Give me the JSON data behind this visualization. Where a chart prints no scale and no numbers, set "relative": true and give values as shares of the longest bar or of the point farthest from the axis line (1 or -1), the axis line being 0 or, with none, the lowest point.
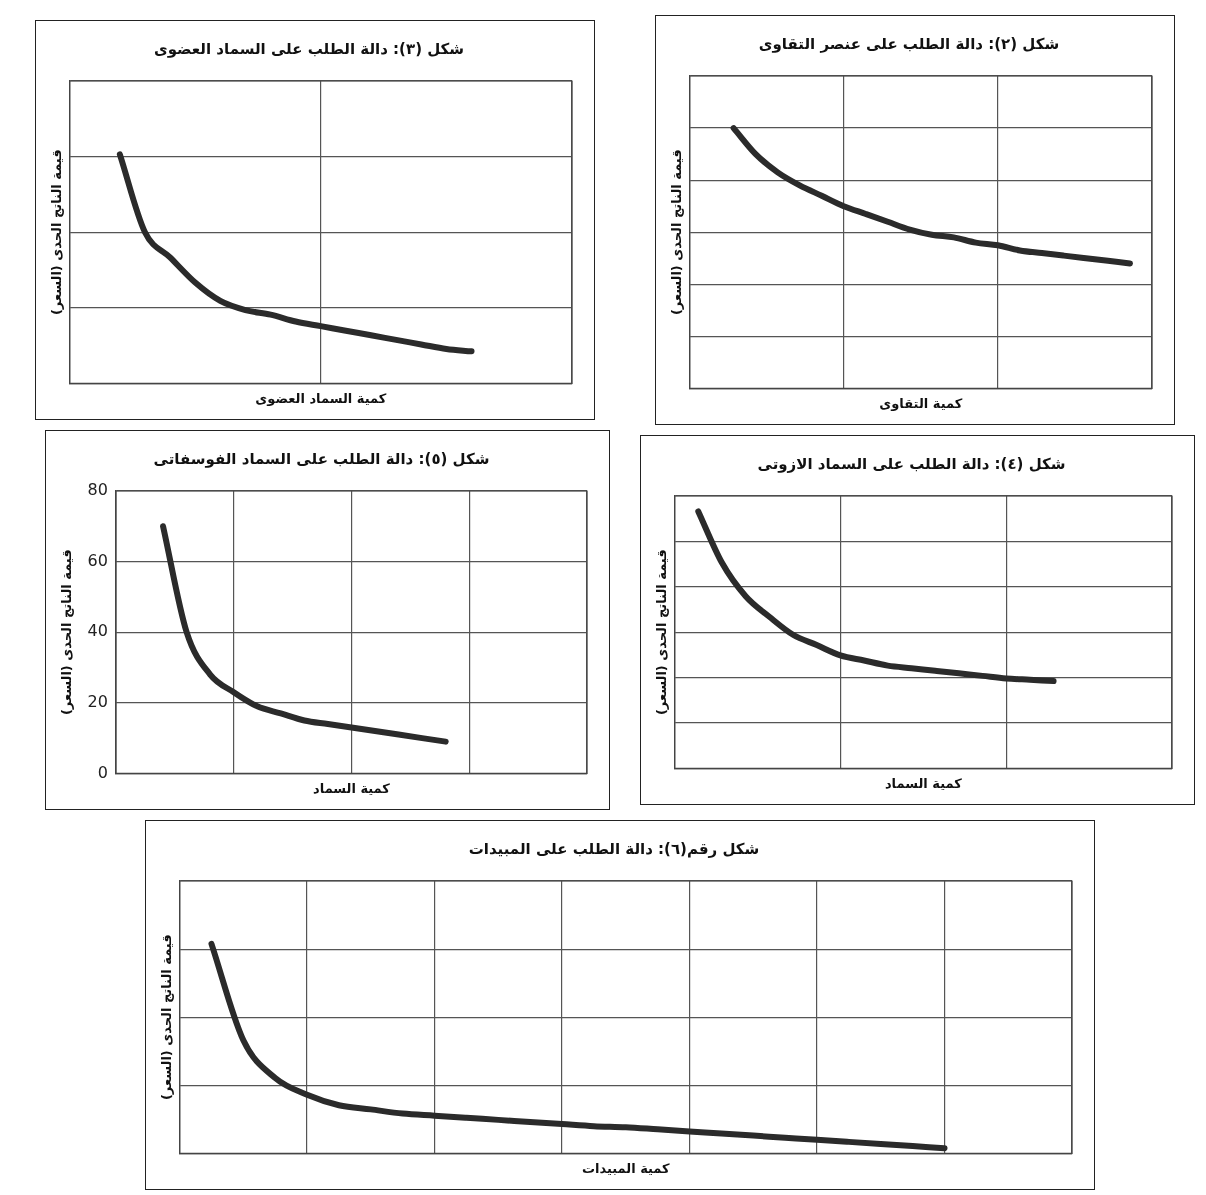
{
  "chart_data": [
    {
      "type": "line",
      "title": "شكل (٣): دالة الطلب على السماد العضوى",
      "xlabel": "كمية السماد العضوى",
      "ylabel": "قيمة الناتج الحدى (السعر)",
      "relative": true,
      "grid": true,
      "legend": false,
      "categories": [
        null,
        null,
        null,
        null,
        null,
        null,
        null,
        null,
        null,
        null,
        null,
        null,
        null,
        null,
        null,
        null,
        null,
        null,
        null,
        null,
        null
      ],
      "series": [
        {
          "color": "#2b2b2b",
          "values": [
            null,
            null,
            1,
            0.66,
            0.55,
            0.44,
            0.36,
            0.32,
            0.3,
            0.27,
            0.25,
            0.23,
            0.21,
            0.19,
            0.17,
            0.15,
            0.14,
            null,
            null,
            null,
            null
          ]
        }
      ]
    },
    {
      "type": "line",
      "title": "شكل (٢): دالة الطلب على عنصر التقاوى",
      "xlabel": "كمية التقاوى",
      "ylabel": "قيمة الناتج الحدى (السعر)",
      "relative": true,
      "grid": true,
      "legend": false,
      "categories": [
        null,
        null,
        null,
        null,
        null,
        null,
        null,
        null,
        null,
        null,
        null,
        null,
        null,
        null,
        null,
        null,
        null,
        null,
        null,
        null,
        null,
        null
      ],
      "series": [
        {
          "color": "#2b2b2b",
          "values": [
            null,
            null,
            1,
            0.9,
            0.83,
            0.78,
            0.74,
            0.7,
            0.67,
            0.64,
            0.61,
            0.59,
            0.58,
            0.56,
            0.55,
            0.53,
            0.52,
            0.51,
            0.5,
            0.49,
            0.48,
            null
          ]
        }
      ]
    },
    {
      "type": "line",
      "title": "شكل (٥): دالة الطلب على السماد الفوسفاتى",
      "xlabel": "كمية السماد",
      "ylabel": "قيمة الناتج الحدى (السعر)",
      "ylim": [
        0,
        80
      ],
      "yticks": [
        0,
        20,
        40,
        60,
        80
      ],
      "grid": true,
      "legend": false,
      "categories": [
        null,
        null,
        null,
        null,
        null,
        null,
        null,
        null,
        null,
        null,
        null,
        null,
        null,
        null,
        null,
        null,
        null,
        null,
        null,
        null,
        null
      ],
      "series": [
        {
          "color": "#2b2b2b",
          "values": [
            null,
            null,
            70,
            40,
            28,
            23,
            19,
            17,
            15,
            14,
            13,
            12,
            11,
            10,
            9,
            null,
            null,
            null,
            null,
            null,
            null
          ]
        }
      ]
    },
    {
      "type": "line",
      "title": "شكل (٤): دالة الطلب على السماد الازوتى",
      "xlabel": "كمية السماد",
      "ylabel": "قيمة الناتج الحدى (السعر)",
      "relative": true,
      "grid": true,
      "legend": false,
      "categories": [
        null,
        null,
        null,
        null,
        null,
        null,
        null,
        null,
        null,
        null,
        null,
        null,
        null,
        null,
        null,
        null,
        null,
        null,
        null,
        null,
        null,
        null
      ],
      "series": [
        {
          "color": "#2b2b2b",
          "values": [
            null,
            1,
            0.8,
            0.67,
            0.59,
            0.52,
            0.48,
            0.44,
            0.42,
            0.4,
            0.39,
            0.38,
            0.37,
            0.36,
            0.35,
            0.345,
            0.34,
            null,
            null,
            null,
            null,
            null
          ]
        }
      ]
    },
    {
      "type": "line",
      "title": "شكل رقم(٦): دالة الطلب على المبيدات",
      "xlabel": "كمية المبيدات",
      "ylabel": "قيمة الناتج الحدى (السعر)",
      "relative": true,
      "grid": true,
      "legend": false,
      "categories": [
        null,
        null,
        null,
        null,
        null,
        null,
        null,
        null,
        null,
        null,
        null,
        null,
        null,
        null,
        null,
        null,
        null,
        null,
        null,
        null,
        null,
        null,
        null,
        null,
        null,
        null,
        null,
        null,
        null
      ],
      "series": [
        {
          "color": "#2b2b2b",
          "values": [
            null,
            1,
            0.54,
            0.36,
            0.28,
            0.23,
            0.21,
            0.19,
            0.18,
            0.17,
            0.16,
            0.15,
            0.14,
            0.13,
            0.125,
            0.115,
            0.105,
            0.095,
            0.085,
            0.075,
            0.065,
            0.055,
            0.045,
            0.035,
            0.025,
            null,
            null,
            null,
            null
          ]
        }
      ]
    }
  ]
}
